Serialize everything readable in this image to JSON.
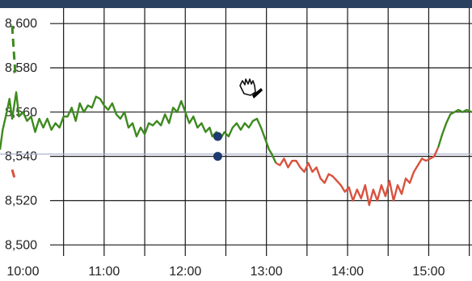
{
  "chart_data": {
    "type": "line",
    "y_ticks": [
      "8,600",
      "8,580",
      "8,560",
      "8,540",
      "8,520",
      "8,500"
    ],
    "x_ticks": [
      "10:00",
      "11:00",
      "12:00",
      "13:00",
      "14:00",
      "15:00"
    ],
    "ylim": [
      8495,
      8607
    ],
    "xlim": [
      "09:43",
      "15:32"
    ],
    "grid": true,
    "reference_level": 8541,
    "colors": {
      "above": "#3d8a1e",
      "below": "#d9523e",
      "reference_line": "#a9b4d0",
      "grid": "#1a1a1a",
      "marker": "#1f3a6e",
      "topbar": "#2b4160"
    },
    "series": [
      {
        "values": [
          [
            "09:43",
            8543
          ],
          [
            "09:45",
            8552
          ],
          [
            "09:48",
            8560
          ],
          [
            "09:50",
            8566
          ],
          [
            "09:52",
            8557
          ],
          [
            "09:55",
            8569
          ],
          [
            "09:57",
            8558
          ],
          [
            "10:00",
            8560
          ],
          [
            "10:03",
            8556
          ],
          [
            "10:06",
            8558
          ],
          [
            "10:09",
            8551
          ],
          [
            "10:12",
            8557
          ],
          [
            "10:15",
            8553
          ],
          [
            "10:18",
            8557
          ],
          [
            "10:21",
            8552
          ],
          [
            "10:24",
            8555
          ],
          [
            "10:27",
            8553
          ],
          [
            "10:30",
            8558
          ],
          [
            "10:33",
            8558
          ],
          [
            "10:36",
            8562
          ],
          [
            "10:39",
            8556
          ],
          [
            "10:42",
            8564
          ],
          [
            "10:45",
            8560
          ],
          [
            "10:48",
            8563
          ],
          [
            "10:51",
            8562
          ],
          [
            "10:54",
            8567
          ],
          [
            "10:57",
            8566
          ],
          [
            "11:00",
            8563
          ],
          [
            "11:03",
            8561
          ],
          [
            "11:06",
            8564
          ],
          [
            "11:09",
            8559
          ],
          [
            "11:12",
            8557
          ],
          [
            "11:15",
            8560
          ],
          [
            "11:18",
            8553
          ],
          [
            "11:21",
            8555
          ],
          [
            "11:24",
            8549
          ],
          [
            "11:27",
            8553
          ],
          [
            "11:30",
            8550
          ],
          [
            "11:33",
            8555
          ],
          [
            "11:36",
            8554
          ],
          [
            "11:39",
            8556
          ],
          [
            "11:42",
            8554
          ],
          [
            "11:45",
            8559
          ],
          [
            "11:48",
            8555
          ],
          [
            "11:51",
            8562
          ],
          [
            "11:54",
            8560
          ],
          [
            "11:57",
            8565
          ],
          [
            "12:00",
            8560
          ],
          [
            "12:03",
            8555
          ],
          [
            "12:06",
            8558
          ],
          [
            "12:09",
            8553
          ],
          [
            "12:12",
            8555
          ],
          [
            "12:15",
            8551
          ],
          [
            "12:18",
            8553
          ],
          [
            "12:20",
            8549
          ],
          [
            "12:23",
            8551
          ],
          [
            "12:26",
            8548
          ],
          [
            "12:29",
            8551
          ],
          [
            "12:32",
            8549
          ],
          [
            "12:35",
            8553
          ],
          [
            "12:38",
            8555
          ],
          [
            "12:41",
            8552
          ],
          [
            "12:44",
            8555
          ],
          [
            "12:47",
            8553
          ],
          [
            "12:50",
            8556
          ],
          [
            "12:53",
            8557
          ],
          [
            "12:56",
            8553
          ],
          [
            "12:59",
            8548
          ],
          [
            "13:02",
            8543
          ],
          [
            "13:04",
            8541
          ],
          [
            "13:07",
            8537
          ],
          [
            "13:10",
            8536
          ],
          [
            "13:13",
            8539
          ],
          [
            "13:16",
            8535
          ],
          [
            "13:19",
            8538
          ],
          [
            "13:22",
            8538
          ],
          [
            "13:25",
            8535
          ],
          [
            "13:28",
            8533
          ],
          [
            "13:31",
            8537
          ],
          [
            "13:34",
            8533
          ],
          [
            "13:37",
            8535
          ],
          [
            "13:40",
            8530
          ],
          [
            "13:43",
            8528
          ],
          [
            "13:46",
            8532
          ],
          [
            "13:49",
            8531
          ],
          [
            "13:52",
            8529
          ],
          [
            "13:55",
            8527
          ],
          [
            "13:58",
            8524
          ],
          [
            "14:01",
            8526
          ],
          [
            "14:04",
            8520
          ],
          [
            "14:07",
            8525
          ],
          [
            "14:10",
            8521
          ],
          [
            "14:13",
            8527
          ],
          [
            "14:16",
            8518
          ],
          [
            "14:19",
            8525
          ],
          [
            "14:22",
            8520
          ],
          [
            "14:25",
            8527
          ],
          [
            "14:28",
            8522
          ],
          [
            "14:31",
            8529
          ],
          [
            "14:34",
            8520
          ],
          [
            "14:37",
            8527
          ],
          [
            "14:40",
            8523
          ],
          [
            "14:43",
            8530
          ],
          [
            "14:46",
            8528
          ],
          [
            "14:49",
            8533
          ],
          [
            "14:52",
            8536
          ],
          [
            "14:55",
            8539
          ],
          [
            "14:58",
            8538
          ],
          [
            "15:01",
            8539
          ],
          [
            "15:04",
            8540
          ],
          [
            "15:07",
            8544
          ],
          [
            "15:10",
            8550
          ],
          [
            "15:13",
            8555
          ],
          [
            "15:16",
            8559
          ],
          [
            "15:19",
            8560
          ],
          [
            "15:22",
            8561
          ],
          [
            "15:25",
            8560
          ],
          [
            "15:28",
            8561
          ],
          [
            "15:32",
            8560
          ]
        ]
      }
    ],
    "left_edge_fragments": [
      {
        "color": "above",
        "values": [
          8599,
          8577
        ]
      },
      {
        "color": "below",
        "values": [
          8534,
          8529
        ]
      }
    ],
    "markers": [
      {
        "x": "12:24",
        "y": 8549
      },
      {
        "x": "12:24",
        "y": 8540
      }
    ]
  },
  "cursor": {
    "icon": "grab-hand-icon"
  }
}
